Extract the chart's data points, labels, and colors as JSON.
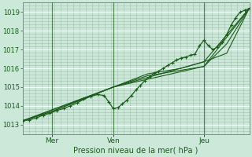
{
  "title": "Pression niveau de la mer( hPa )",
  "bg_color": "#cce8d8",
  "plot_bg_color": "#cce8d8",
  "grid_minor_color": "#e8a0a0",
  "grid_major_color": "#ffffff",
  "line_color": "#1a5c1a",
  "ylim": [
    1012.5,
    1019.5
  ],
  "yticks": [
    1013,
    1014,
    1015,
    1016,
    1017,
    1018,
    1019
  ],
  "xtick_labels": [
    "Mer",
    "Ven",
    "Jeu"
  ],
  "vline_x": [
    0.13,
    0.4,
    0.8
  ],
  "series_main": [
    0.0,
    1013.2,
    0.03,
    1013.25,
    0.06,
    1013.35,
    0.09,
    1013.5,
    0.12,
    1013.6,
    0.15,
    1013.75,
    0.18,
    1013.85,
    0.21,
    1014.0,
    0.24,
    1014.15,
    0.27,
    1014.35,
    0.3,
    1014.5,
    0.33,
    1014.6,
    0.36,
    1014.55,
    0.38,
    1014.2,
    0.4,
    1013.85,
    0.42,
    1013.9,
    0.44,
    1014.1,
    0.46,
    1014.3,
    0.48,
    1014.55,
    0.5,
    1014.85,
    0.52,
    1015.1,
    0.54,
    1015.35,
    0.56,
    1015.55,
    0.58,
    1015.75,
    0.6,
    1015.85,
    0.62,
    1016.0,
    0.64,
    1016.15,
    0.66,
    1016.3,
    0.68,
    1016.45,
    0.7,
    1016.55,
    0.72,
    1016.6,
    0.74,
    1016.7,
    0.76,
    1016.75,
    0.78,
    1017.2,
    0.8,
    1017.5,
    0.82,
    1017.2,
    0.84,
    1017.0,
    0.86,
    1017.15,
    0.88,
    1017.4,
    0.9,
    1017.8,
    0.92,
    1018.3,
    0.94,
    1018.7,
    0.96,
    1019.0,
    0.98,
    1019.1,
    1.0,
    1019.2
  ],
  "series_smooth": [
    [
      0.0,
      1013.2,
      0.13,
      1013.7,
      0.4,
      1015.0,
      0.55,
      1015.6,
      0.8,
      1016.1,
      0.9,
      1017.3,
      1.0,
      1019.2
    ],
    [
      0.0,
      1013.2,
      0.13,
      1013.7,
      0.4,
      1015.0,
      0.55,
      1015.7,
      0.7,
      1016.0,
      0.8,
      1016.35,
      0.9,
      1016.8,
      1.0,
      1019.2
    ],
    [
      0.0,
      1013.2,
      0.4,
      1015.0,
      0.8,
      1016.1,
      1.0,
      1019.2
    ],
    [
      0.0,
      1013.2,
      0.4,
      1015.0,
      0.8,
      1016.35,
      1.0,
      1019.2
    ]
  ],
  "xlabel_fontsize": 7,
  "ytick_fontsize": 6,
  "xtick_fontsize": 6.5
}
